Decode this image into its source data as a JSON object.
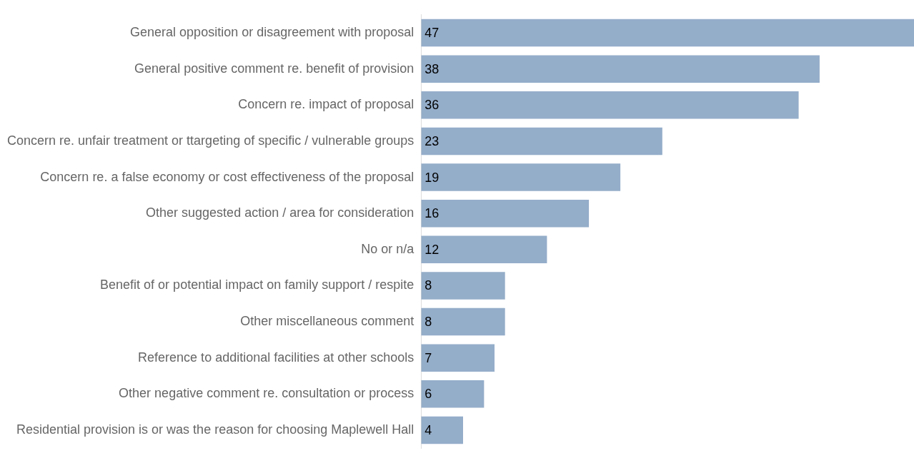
{
  "chart_data": {
    "type": "bar",
    "orientation": "horizontal",
    "categories": [
      "General opposition or disagreement with proposal",
      "General positive comment re. benefit of provision",
      "Concern re. impact of proposal",
      "Concern re. unfair treatment or ttargeting of specific / vulnerable groups",
      "Concern re. a false economy or cost effectiveness of the proposal",
      "Other suggested action / area for consideration",
      "No or n/a",
      "Benefit of or potential impact on family support / respite",
      "Other miscellaneous comment",
      "Reference to additional facilities at other schools",
      "Other negative comment re. consultation or process",
      "Residential provision is or was the reason for choosing Maplewell Hall"
    ],
    "values": [
      47,
      38,
      36,
      23,
      19,
      16,
      12,
      8,
      8,
      7,
      6,
      4
    ],
    "color": "#94adc9",
    "data_labels": true,
    "legend": false
  }
}
